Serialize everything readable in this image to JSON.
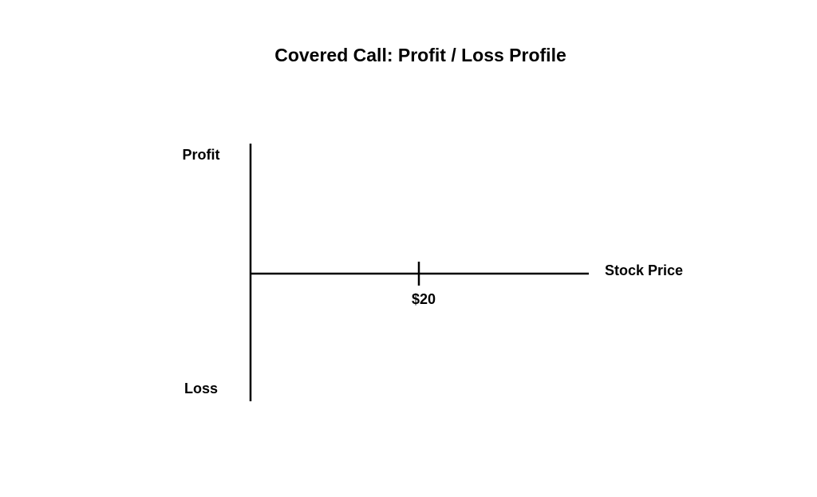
{
  "chart_data": {
    "type": "line",
    "title": "Covered Call: Profit / Loss Profile",
    "xlabel": "Stock Price",
    "ylabel_top": "Profit",
    "ylabel_bottom": "Loss",
    "x_ticks": [
      {
        "value": 20,
        "label": "$20"
      }
    ],
    "xlim": [
      0,
      40
    ],
    "series": [],
    "grid": false,
    "legend": "none"
  }
}
